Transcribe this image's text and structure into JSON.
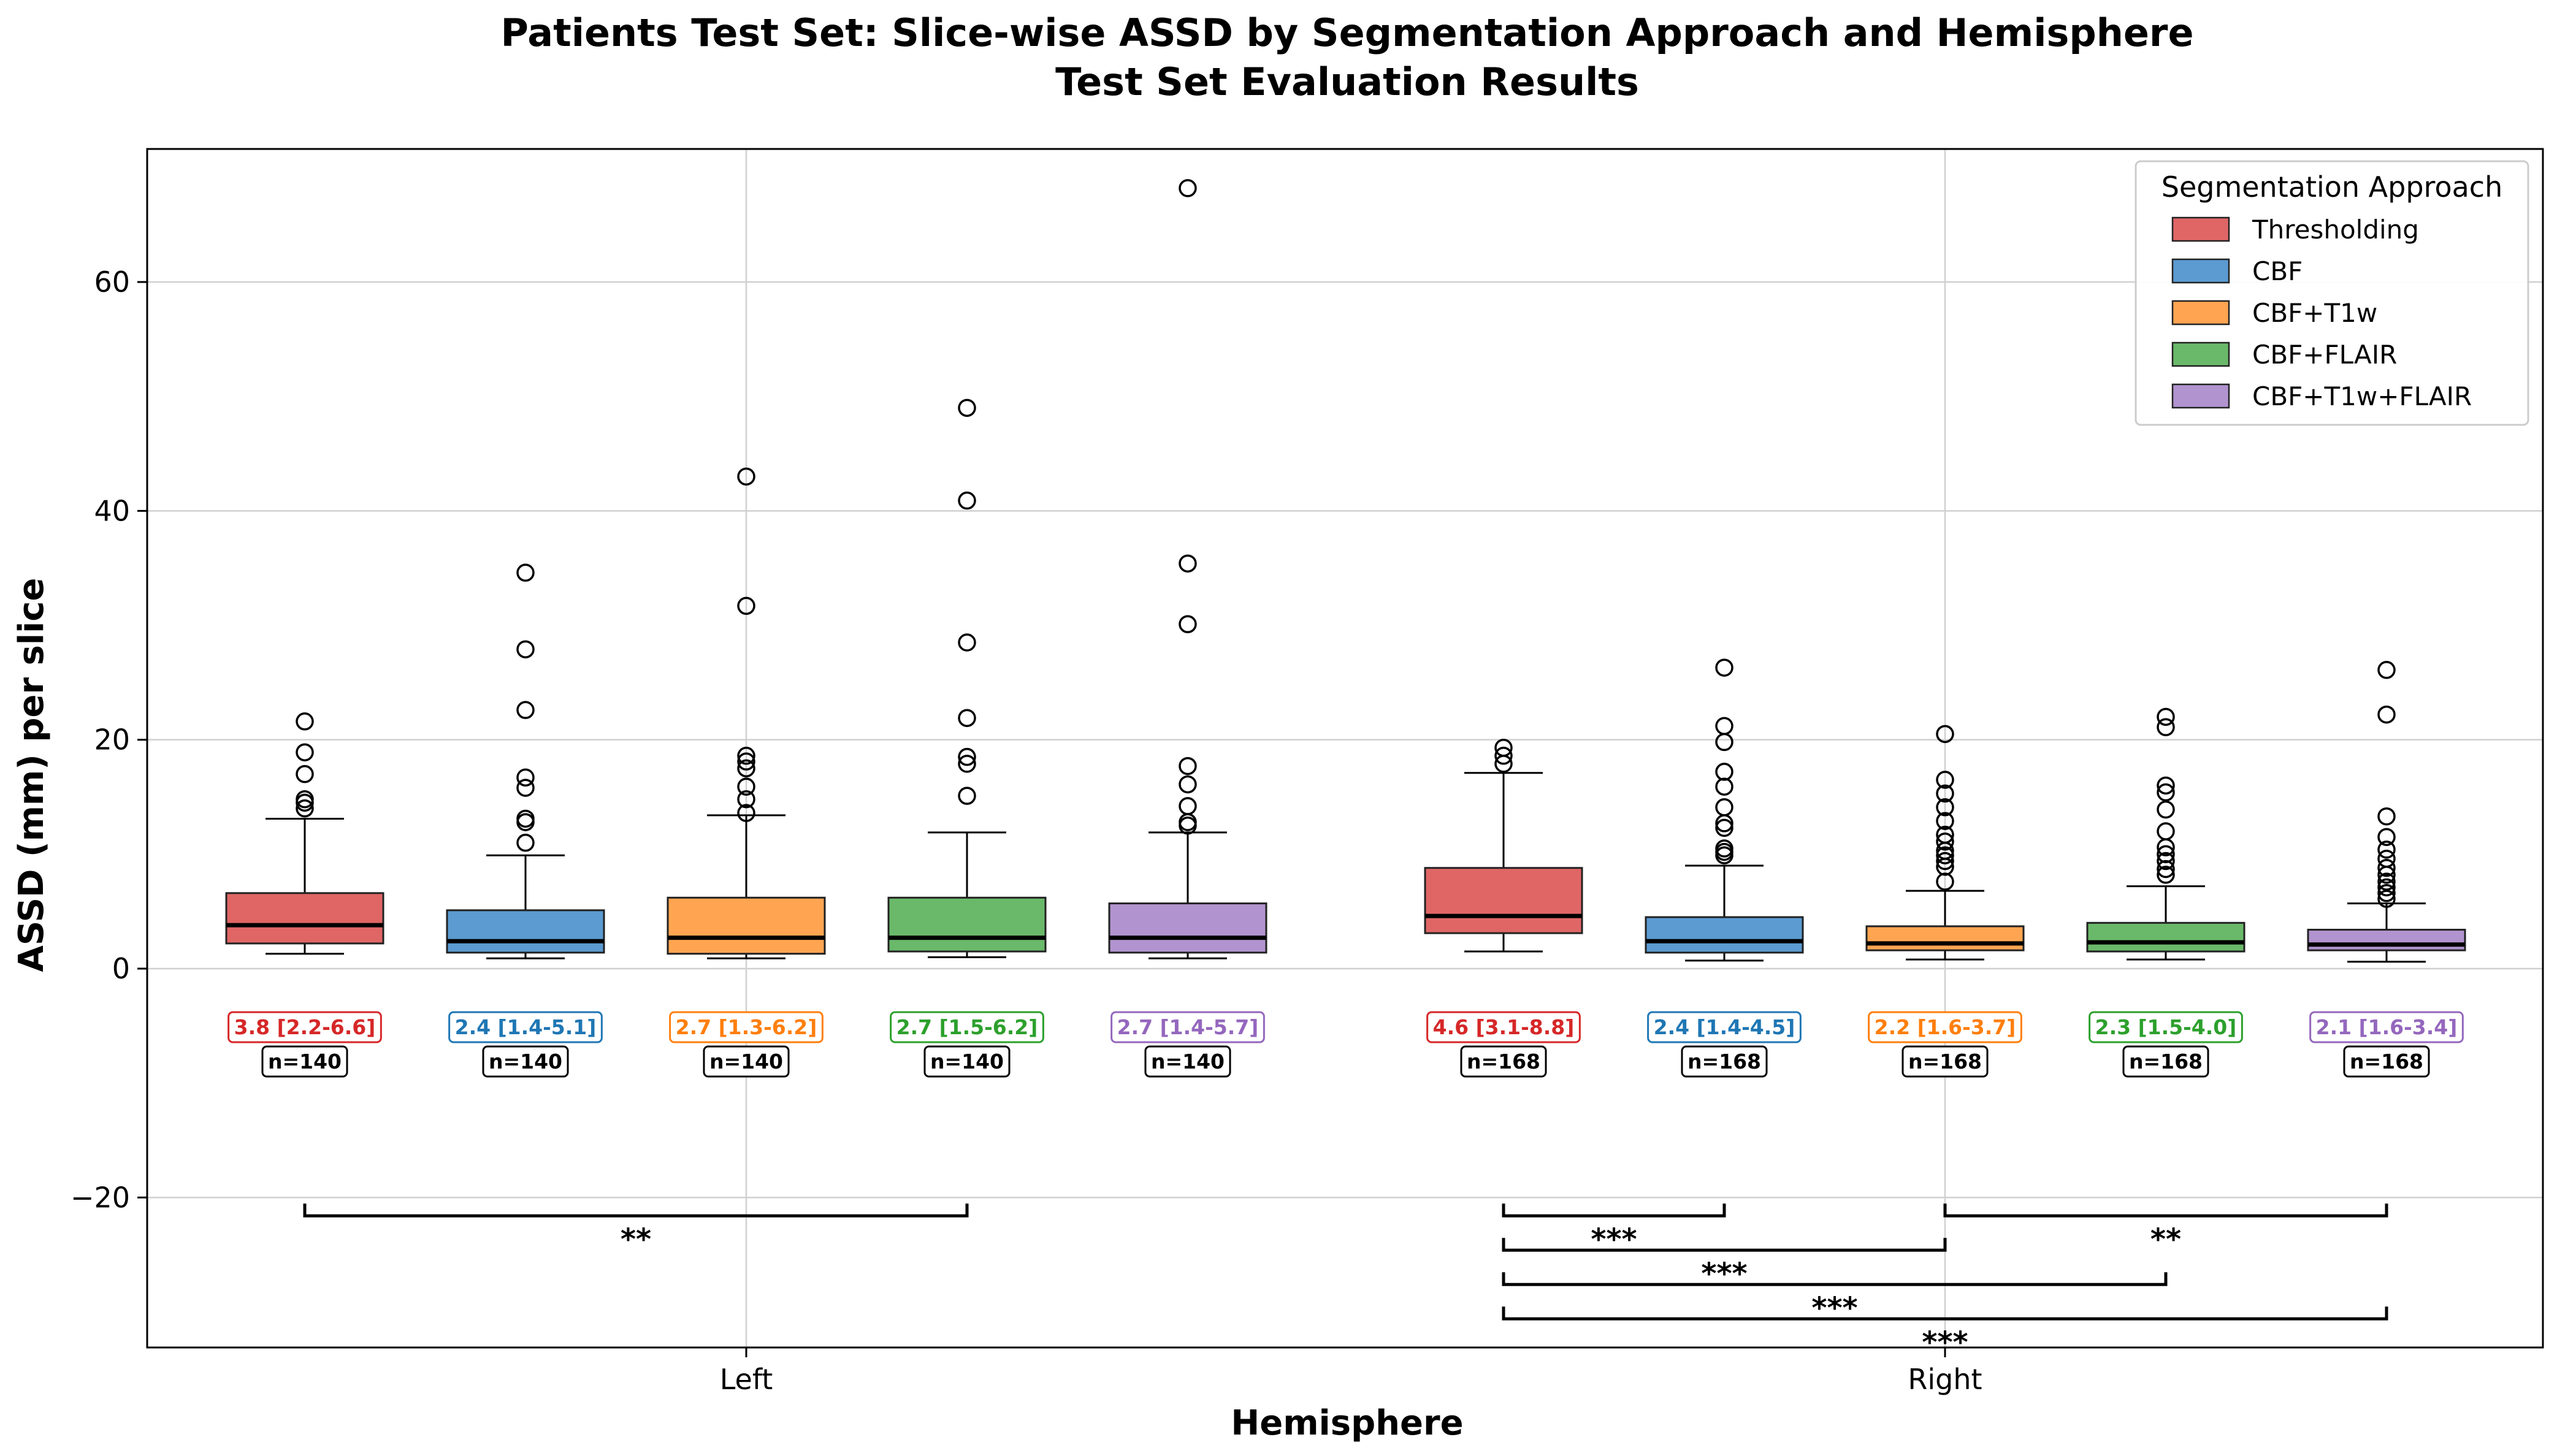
{
  "chart_data": {
    "type": "box",
    "title": "Patients Test Set: Slice-wise ASSD by Segmentation Approach and Hemisphere",
    "subtitle": "Test Set Evaluation Results",
    "xlabel": "Hemisphere",
    "ylabel": "ASSD (mm) per slice",
    "ylim": [
      -33,
      72
    ],
    "yticks": [
      -20,
      0,
      20,
      40,
      60
    ],
    "ytick_labels": [
      "−20",
      "0",
      "20",
      "40",
      "60"
    ],
    "grid": true,
    "categories": [
      "Left",
      "Right"
    ],
    "legend": {
      "title": "Segmentation Approach",
      "placement": "top-right",
      "entries": [
        "Thresholding",
        "CBF",
        "CBF+T1w",
        "CBF+FLAIR",
        "CBF+T1w+FLAIR"
      ]
    },
    "series": [
      {
        "name": "Thresholding",
        "color": "#d62728",
        "fill": "#e06666"
      },
      {
        "name": "CBF",
        "color": "#1f77b4",
        "fill": "#5b9bd1"
      },
      {
        "name": "CBF+T1w",
        "color": "#ff7f0e",
        "fill": "#ffa552"
      },
      {
        "name": "CBF+FLAIR",
        "color": "#2ca02c",
        "fill": "#6ab96a"
      },
      {
        "name": "CBF+T1w+FLAIR",
        "color": "#9467bd",
        "fill": "#b194cf"
      }
    ],
    "boxes": [
      {
        "group": "Left",
        "series": 0,
        "q1": 2.2,
        "median": 3.8,
        "q3": 6.6,
        "whislo": 1.3,
        "whishi": 13.1,
        "fliers": [
          14.0,
          14.5,
          14.8,
          17.0,
          18.9,
          21.6
        ],
        "stat_label": "3.8 [2.2-6.6]",
        "n_label": "n=140"
      },
      {
        "group": "Left",
        "series": 1,
        "q1": 1.4,
        "median": 2.4,
        "q3": 5.1,
        "whislo": 0.9,
        "whishi": 9.9,
        "fliers": [
          11.0,
          12.8,
          13.1,
          15.8,
          16.7,
          22.6,
          27.9,
          34.6
        ],
        "stat_label": "2.4 [1.4-5.1]",
        "n_label": "n=140"
      },
      {
        "group": "Left",
        "series": 2,
        "q1": 1.3,
        "median": 2.7,
        "q3": 6.2,
        "whislo": 0.9,
        "whishi": 13.4,
        "fliers": [
          13.6,
          14.8,
          15.9,
          17.5,
          18.1,
          18.6,
          31.7,
          43.0
        ],
        "stat_label": "2.7 [1.3-6.2]",
        "n_label": "n=140"
      },
      {
        "group": "Left",
        "series": 3,
        "q1": 1.5,
        "median": 2.7,
        "q3": 6.2,
        "whislo": 1.0,
        "whishi": 11.9,
        "fliers": [
          15.1,
          17.9,
          18.5,
          21.9,
          28.5,
          40.9,
          49.0
        ],
        "stat_label": "2.7 [1.5-6.2]",
        "n_label": "n=140"
      },
      {
        "group": "Left",
        "series": 4,
        "q1": 1.4,
        "median": 2.7,
        "q3": 5.7,
        "whislo": 0.9,
        "whishi": 11.9,
        "fliers": [
          12.5,
          12.8,
          14.2,
          16.1,
          17.7,
          30.1,
          35.4,
          68.2
        ],
        "stat_label": "2.7 [1.4-5.7]",
        "n_label": "n=140"
      },
      {
        "group": "Right",
        "series": 0,
        "q1": 3.1,
        "median": 4.6,
        "q3": 8.8,
        "whislo": 1.5,
        "whishi": 17.1,
        "fliers": [
          17.9,
          18.6,
          19.3
        ],
        "stat_label": "4.6 [3.1-8.8]",
        "n_label": "n=168"
      },
      {
        "group": "Right",
        "series": 1,
        "q1": 1.4,
        "median": 2.4,
        "q3": 4.5,
        "whislo": 0.7,
        "whishi": 9.0,
        "fliers": [
          9.9,
          10.2,
          10.5,
          12.3,
          12.7,
          14.1,
          15.9,
          17.2,
          19.8,
          21.2,
          26.3
        ],
        "stat_label": "2.4 [1.4-4.5]",
        "n_label": "n=168"
      },
      {
        "group": "Right",
        "series": 2,
        "q1": 1.6,
        "median": 2.2,
        "q3": 3.7,
        "whislo": 0.8,
        "whishi": 6.8,
        "fliers": [
          7.6,
          8.9,
          9.4,
          9.9,
          10.3,
          11.1,
          11.7,
          12.9,
          14.1,
          15.3,
          16.5,
          20.5
        ],
        "stat_label": "2.2 [1.6-3.7]",
        "n_label": "n=168"
      },
      {
        "group": "Right",
        "series": 3,
        "q1": 1.5,
        "median": 2.3,
        "q3": 4.0,
        "whislo": 0.8,
        "whishi": 7.2,
        "fliers": [
          8.2,
          8.7,
          9.4,
          10.0,
          10.6,
          12.0,
          13.9,
          15.4,
          16.0,
          21.1,
          22.0
        ],
        "stat_label": "2.3 [1.5-4.0]",
        "n_label": "n=168"
      },
      {
        "group": "Right",
        "series": 4,
        "q1": 1.6,
        "median": 2.1,
        "q3": 3.4,
        "whislo": 0.6,
        "whishi": 5.7,
        "fliers": [
          6.1,
          6.6,
          7.1,
          7.6,
          8.2,
          8.8,
          9.6,
          10.4,
          11.5,
          13.3,
          22.2,
          26.1
        ],
        "stat_label": "2.1 [1.6-3.4]",
        "n_label": "n=168"
      }
    ],
    "significance": [
      {
        "from": 0,
        "to": 3,
        "y": -21.6,
        "label": "**"
      },
      {
        "from": 5,
        "to": 6,
        "y": -21.6,
        "label": "***"
      },
      {
        "from": 7,
        "to": 9,
        "y": -21.6,
        "label": "**"
      },
      {
        "from": 5,
        "to": 7,
        "y": -24.6,
        "label": "***"
      },
      {
        "from": 5,
        "to": 8,
        "y": -27.6,
        "label": "***"
      },
      {
        "from": 5,
        "to": 9,
        "y": -30.6,
        "label": "***"
      }
    ]
  }
}
